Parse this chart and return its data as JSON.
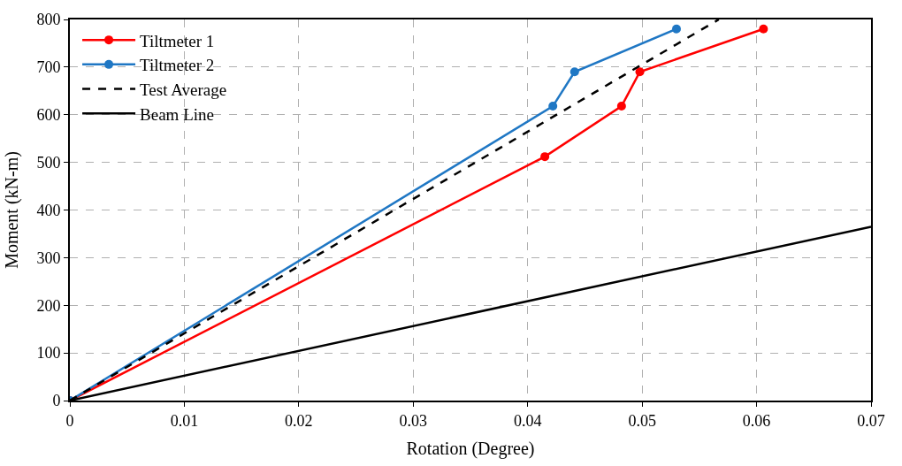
{
  "chart_data": {
    "type": "line",
    "xlabel": "Rotation (Degree)",
    "ylabel": "Moment (kN-m)",
    "xlim": [
      0,
      0.07
    ],
    "ylim": [
      0,
      800
    ],
    "xticks": [
      0,
      0.01,
      0.02,
      0.03,
      0.04,
      0.05,
      0.06,
      0.07
    ],
    "yticks": [
      0,
      100,
      200,
      300,
      400,
      500,
      600,
      700,
      800
    ],
    "grid": true,
    "legend": "top left",
    "series": [
      {
        "name": "Tiltmeter 1",
        "color": "#ff0000",
        "marker": "circle",
        "line_style": "solid",
        "x": [
          0,
          0.0415,
          0.0482,
          0.0498,
          0.0606
        ],
        "values": [
          0,
          512,
          618,
          690,
          780
        ]
      },
      {
        "name": "Tiltmeter 2",
        "color": "#1f77c4",
        "marker": "circle",
        "line_style": "solid",
        "x": [
          0,
          0.0422,
          0.0441,
          0.053
        ],
        "values": [
          0,
          618,
          690,
          780
        ]
      },
      {
        "name": "Test Average",
        "color": "#000000",
        "marker": "none",
        "line_style": "dashed",
        "x": [
          0,
          0.0567
        ],
        "values": [
          0,
          800
        ]
      },
      {
        "name": "Beam Line",
        "color": "#000000",
        "marker": "none",
        "line_style": "solid",
        "x": [
          0,
          0.07
        ],
        "values": [
          0,
          365
        ]
      }
    ]
  }
}
